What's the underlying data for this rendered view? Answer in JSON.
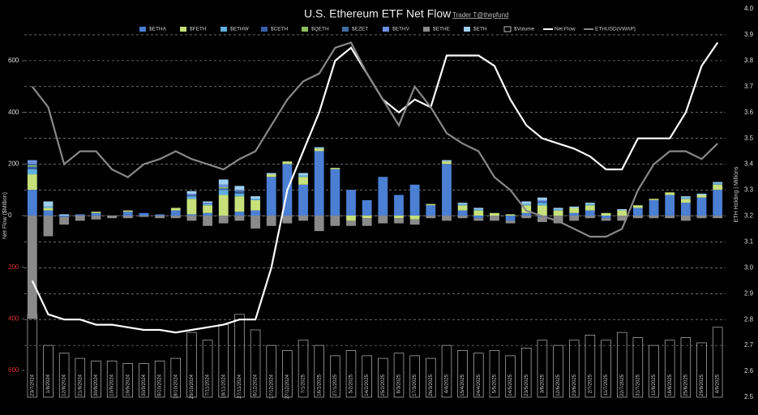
{
  "chart_data": {
    "type": "bar",
    "title": "U.S. Ethereum ETF Net Flow",
    "subtitle": "Trader T@thepfund",
    "ylabel": "Net Flow ($Million)",
    "y2label": "ETH Holding | Millions",
    "categories": [
      "23/7/2024",
      "1/8/2024",
      "12/8/2024",
      "21/8/2024",
      "30/8/2024",
      "10/9/2024",
      "19/9/2024",
      "30/9/2024",
      "9/10/2024",
      "18/10/2024",
      "29/10/2024",
      "7/11/2024",
      "18/11/2024",
      "27/11/2024",
      "6/12/2024",
      "17/12/2024",
      "27/12/2024",
      "7/1/2025",
      "16/1/2025",
      "27/1/2025",
      "5/2/2025",
      "14/2/2025",
      "25/2/2025",
      "6/3/2025",
      "17/3/2025",
      "26/3/2025",
      "4/4/2025",
      "15/4/2025",
      "24/4/2025",
      "5/5/2025",
      "14/5/2025",
      "23/5/2025",
      "3/6/2025",
      "12/6/2025",
      "23/6/2025",
      "2/7/2025",
      "11/7/2025",
      "22/7/2025",
      "31/7/2025",
      "11/8/2025",
      "18/8/2025",
      "25/8/2025",
      "29/8/2025",
      "4/9/2025"
    ],
    "series": [
      {
        "name": "$ETHA",
        "color": "#4a7fd4",
        "values": [
          100,
          20,
          -5,
          5,
          10,
          0,
          15,
          10,
          5,
          20,
          5,
          10,
          0,
          15,
          20,
          150,
          200,
          120,
          250,
          180,
          100,
          60,
          150,
          80,
          120,
          40,
          200,
          20,
          -10,
          0,
          -20,
          10,
          -5,
          0,
          10,
          20,
          -10,
          0,
          30,
          60,
          80,
          50,
          70,
          100
        ]
      },
      {
        "name": "$FETH",
        "color": "#c7e07a",
        "values": [
          60,
          10,
          0,
          0,
          5,
          0,
          5,
          0,
          0,
          10,
          60,
          30,
          80,
          60,
          40,
          10,
          10,
          30,
          10,
          5,
          -20,
          -10,
          0,
          -10,
          -15,
          5,
          10,
          20,
          20,
          10,
          5,
          30,
          40,
          20,
          20,
          20,
          10,
          20,
          10,
          5,
          10,
          15,
          10,
          20
        ]
      },
      {
        "name": "$ETHW",
        "color": "#5fb0e0",
        "values": [
          20,
          5,
          0,
          0,
          0,
          0,
          0,
          0,
          0,
          0,
          10,
          5,
          20,
          10,
          5,
          0,
          0,
          5,
          0,
          0,
          0,
          0,
          0,
          0,
          0,
          0,
          0,
          5,
          5,
          0,
          0,
          5,
          10,
          5,
          0,
          5,
          0,
          0,
          0,
          0,
          0,
          5,
          0,
          5
        ]
      },
      {
        "name": "$CETH",
        "color": "#3a5fa8",
        "values": [
          10,
          0,
          0,
          0,
          0,
          0,
          0,
          0,
          0,
          0,
          5,
          0,
          5,
          5,
          0,
          0,
          0,
          0,
          0,
          0,
          0,
          0,
          0,
          0,
          0,
          0,
          0,
          0,
          0,
          0,
          0,
          0,
          5,
          0,
          0,
          0,
          0,
          0,
          0,
          0,
          0,
          0,
          0,
          0
        ]
      },
      {
        "name": "$QETH",
        "color": "#8fbf60",
        "values": [
          5,
          0,
          0,
          0,
          0,
          0,
          0,
          0,
          0,
          0,
          0,
          0,
          5,
          0,
          0,
          0,
          0,
          0,
          0,
          0,
          0,
          0,
          0,
          0,
          0,
          0,
          0,
          0,
          0,
          0,
          0,
          0,
          0,
          0,
          0,
          0,
          0,
          0,
          0,
          0,
          0,
          0,
          0,
          0
        ]
      },
      {
        "name": "$EZET",
        "color": "#3f6f9f",
        "values": [
          5,
          0,
          0,
          0,
          0,
          0,
          0,
          0,
          0,
          0,
          0,
          0,
          0,
          5,
          0,
          0,
          0,
          0,
          0,
          0,
          0,
          0,
          0,
          0,
          0,
          0,
          0,
          0,
          0,
          0,
          0,
          0,
          0,
          0,
          0,
          0,
          0,
          0,
          0,
          0,
          0,
          0,
          0,
          0
        ]
      },
      {
        "name": "$ETHV",
        "color": "#7090e0",
        "values": [
          15,
          0,
          0,
          0,
          0,
          0,
          0,
          0,
          0,
          0,
          5,
          5,
          10,
          5,
          0,
          0,
          0,
          0,
          0,
          0,
          0,
          0,
          0,
          0,
          0,
          0,
          0,
          0,
          0,
          0,
          0,
          0,
          5,
          0,
          0,
          0,
          0,
          0,
          0,
          0,
          0,
          0,
          0,
          0
        ]
      },
      {
        "name": "$ETHE",
        "color": "#8a8a8a",
        "values": [
          -400,
          -80,
          -30,
          -20,
          -15,
          -10,
          -10,
          -5,
          -10,
          -10,
          -20,
          -40,
          -30,
          -20,
          -50,
          -40,
          -30,
          -20,
          -60,
          -40,
          -20,
          -30,
          -30,
          -20,
          -20,
          -10,
          -20,
          -10,
          -10,
          -20,
          -10,
          -10,
          -20,
          -30,
          -20,
          -10,
          -10,
          -20,
          -10,
          -10,
          -10,
          -20,
          -10,
          -10
        ]
      },
      {
        "name": "$ETH",
        "color": "#9fd0f0",
        "values": [
          0,
          20,
          5,
          0,
          0,
          0,
          0,
          0,
          0,
          0,
          10,
          5,
          20,
          15,
          10,
          5,
          0,
          10,
          5,
          0,
          0,
          0,
          0,
          0,
          0,
          0,
          5,
          5,
          5,
          0,
          0,
          10,
          10,
          5,
          5,
          5,
          0,
          5,
          0,
          0,
          0,
          5,
          5,
          5
        ]
      },
      {
        "name": "$Volume",
        "color": "#bbbbbb",
        "kind": "volume",
        "axis": "y2",
        "values": [
          2.82,
          2.7,
          2.67,
          2.65,
          2.64,
          2.64,
          2.63,
          2.63,
          2.64,
          2.65,
          2.75,
          2.72,
          2.78,
          2.82,
          2.76,
          2.7,
          2.68,
          2.72,
          2.7,
          2.66,
          2.68,
          2.66,
          2.65,
          2.67,
          2.66,
          2.65,
          2.7,
          2.68,
          2.67,
          2.68,
          2.66,
          2.69,
          2.72,
          2.7,
          2.72,
          2.74,
          2.72,
          2.75,
          2.73,
          2.7,
          2.72,
          2.73,
          2.71,
          2.77
        ]
      },
      {
        "name": "Net Flow",
        "color": "#ffffff",
        "kind": "line",
        "axis": "y2",
        "values": [
          2.95,
          2.82,
          2.8,
          2.8,
          2.78,
          2.78,
          2.77,
          2.76,
          2.76,
          2.75,
          2.76,
          2.77,
          2.78,
          2.8,
          2.8,
          3.0,
          3.3,
          3.45,
          3.6,
          3.8,
          3.85,
          3.75,
          3.65,
          3.6,
          3.65,
          3.62,
          3.82,
          3.82,
          3.82,
          3.78,
          3.65,
          3.55,
          3.5,
          3.48,
          3.46,
          3.43,
          3.38,
          3.38,
          3.5,
          3.5,
          3.5,
          3.6,
          3.78,
          3.87
        ]
      },
      {
        "name": "ETHUSD(VWAP)",
        "color": "#888888",
        "kind": "line",
        "axis": "y2",
        "values": [
          3.7,
          3.62,
          3.4,
          3.45,
          3.45,
          3.38,
          3.35,
          3.4,
          3.42,
          3.45,
          3.42,
          3.4,
          3.38,
          3.42,
          3.45,
          3.55,
          3.65,
          3.72,
          3.75,
          3.85,
          3.87,
          3.75,
          3.65,
          3.55,
          3.7,
          3.62,
          3.52,
          3.48,
          3.45,
          3.35,
          3.3,
          3.22,
          3.2,
          3.18,
          3.15,
          3.12,
          3.12,
          3.15,
          3.3,
          3.4,
          3.45,
          3.45,
          3.42,
          3.48
        ]
      }
    ],
    "ylim": [
      -600,
      600
    ],
    "yticks": [
      {
        "value": -600,
        "label": "600"
      },
      {
        "value": -400,
        "label": "400"
      },
      {
        "value": -200,
        "label": "200"
      },
      0,
      200,
      400,
      600
    ],
    "y2lim": [
      2.5,
      4.0
    ],
    "y2ticks": [
      2.5,
      2.6,
      2.7,
      2.8,
      2.9,
      {
        "value": 3,
        "label": "3.0"
      },
      3.1,
      3.2,
      3.3,
      3.4,
      3.5,
      3.6,
      3.7,
      3.8,
      3.9,
      {
        "value": 4,
        "label": "4.0"
      }
    ],
    "grid": true,
    "negative_color": "#e03030"
  }
}
